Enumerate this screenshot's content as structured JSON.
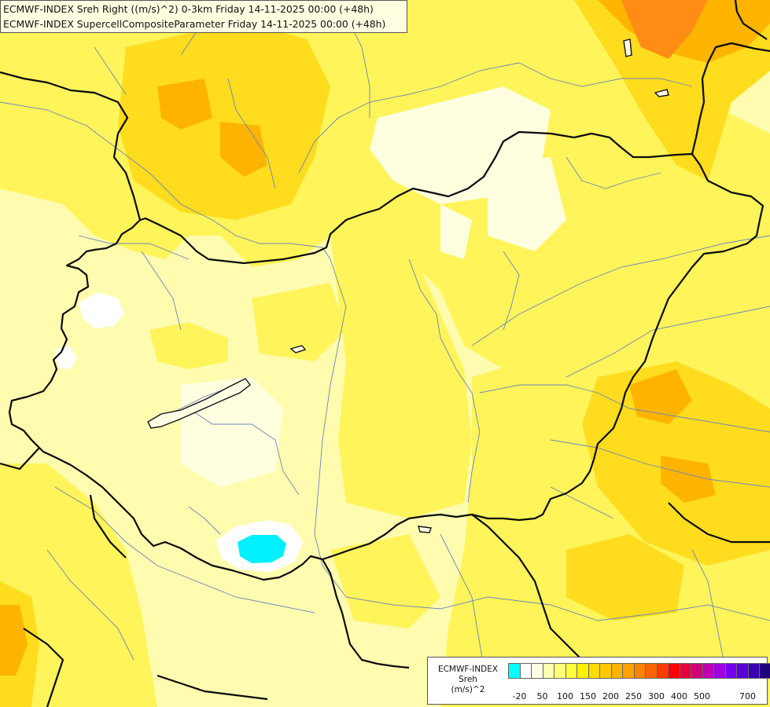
{
  "header": {
    "line1": "ECMWF-INDEX Sreh Right ((m/s)^2) 0-3km Friday 14-11-2025 00:00 (+48h)",
    "line2": "ECMWF-INDEX SupercellCompositeParameter Friday 14-11-2025 00:00 (+48h)"
  },
  "legend": {
    "title_lines": [
      "ECMWF-INDEX",
      "Sreh",
      "(m/s)^2"
    ],
    "colors": [
      "#00ffff",
      "#ffffff",
      "#ffffe6",
      "#ffffb4",
      "#ffff78",
      "#ffff3c",
      "#fff000",
      "#ffdc00",
      "#ffc800",
      "#ffb400",
      "#ffa000",
      "#ff8200",
      "#ff6400",
      "#ff3c00",
      "#ff0000",
      "#e6003c",
      "#d20078",
      "#be00b4",
      "#a000dc",
      "#7800f0",
      "#5a00dc",
      "#3c00b4",
      "#1e0078"
    ],
    "ticks": [
      "-20",
      "50",
      "100",
      "150",
      "200",
      "250",
      "300",
      "400",
      "500",
      "700"
    ]
  }
}
